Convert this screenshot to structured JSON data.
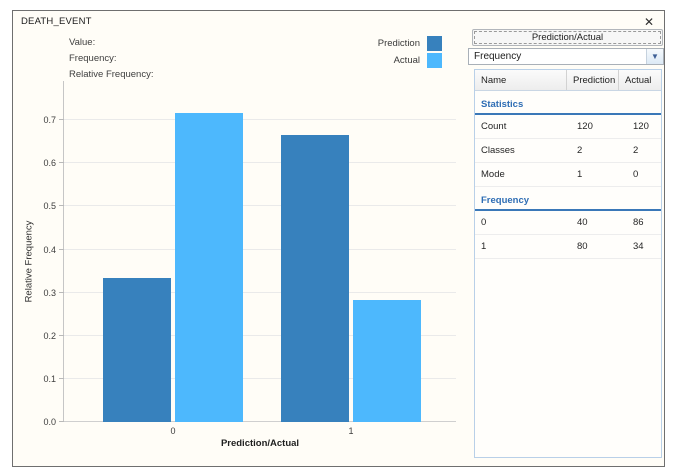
{
  "window": {
    "title": "DEATH_EVENT",
    "close_glyph": "✕"
  },
  "hover_info": {
    "labels": [
      "Value:",
      "Frequency:",
      "Relative Frequency:"
    ]
  },
  "legend": [
    {
      "label": "Prediction",
      "color": "#3781bd"
    },
    {
      "label": "Actual",
      "color": "#4db8fd"
    }
  ],
  "chart_data": {
    "type": "bar",
    "title": "DEATH_EVENT",
    "categories": [
      "0",
      "1"
    ],
    "series": [
      {
        "name": "Prediction",
        "color": "#3781bd",
        "values": [
          0.3333,
          0.6667
        ],
        "counts": [
          40,
          80
        ]
      },
      {
        "name": "Actual",
        "color": "#4db8fd",
        "values": [
          0.7167,
          0.2833
        ],
        "counts": [
          86,
          34
        ]
      }
    ],
    "xlabel": "Prediction/Actual",
    "ylabel": "Relative Frequency",
    "ylim": [
      0,
      0.79
    ],
    "yticks": [
      0.0,
      0.1,
      0.2,
      0.3,
      0.4,
      0.5,
      0.6,
      0.7
    ],
    "grid": true,
    "legend_position": "top-right"
  },
  "panel": {
    "button_label": "Prediction/Actual",
    "dropdown_value": "Frequency",
    "dropdown_arrow_glyph": "▼",
    "table": {
      "headers": [
        "Name",
        "Prediction",
        "Actual"
      ],
      "sections": [
        {
          "title": "Statistics",
          "rows": [
            [
              "Count",
              "120",
              "120"
            ],
            [
              "Classes",
              "2",
              "2"
            ],
            [
              "Mode",
              "1",
              "0"
            ]
          ]
        },
        {
          "title": "Frequency",
          "rows": [
            [
              "0",
              "40",
              "86"
            ],
            [
              "1",
              "80",
              "34"
            ]
          ]
        }
      ]
    }
  }
}
